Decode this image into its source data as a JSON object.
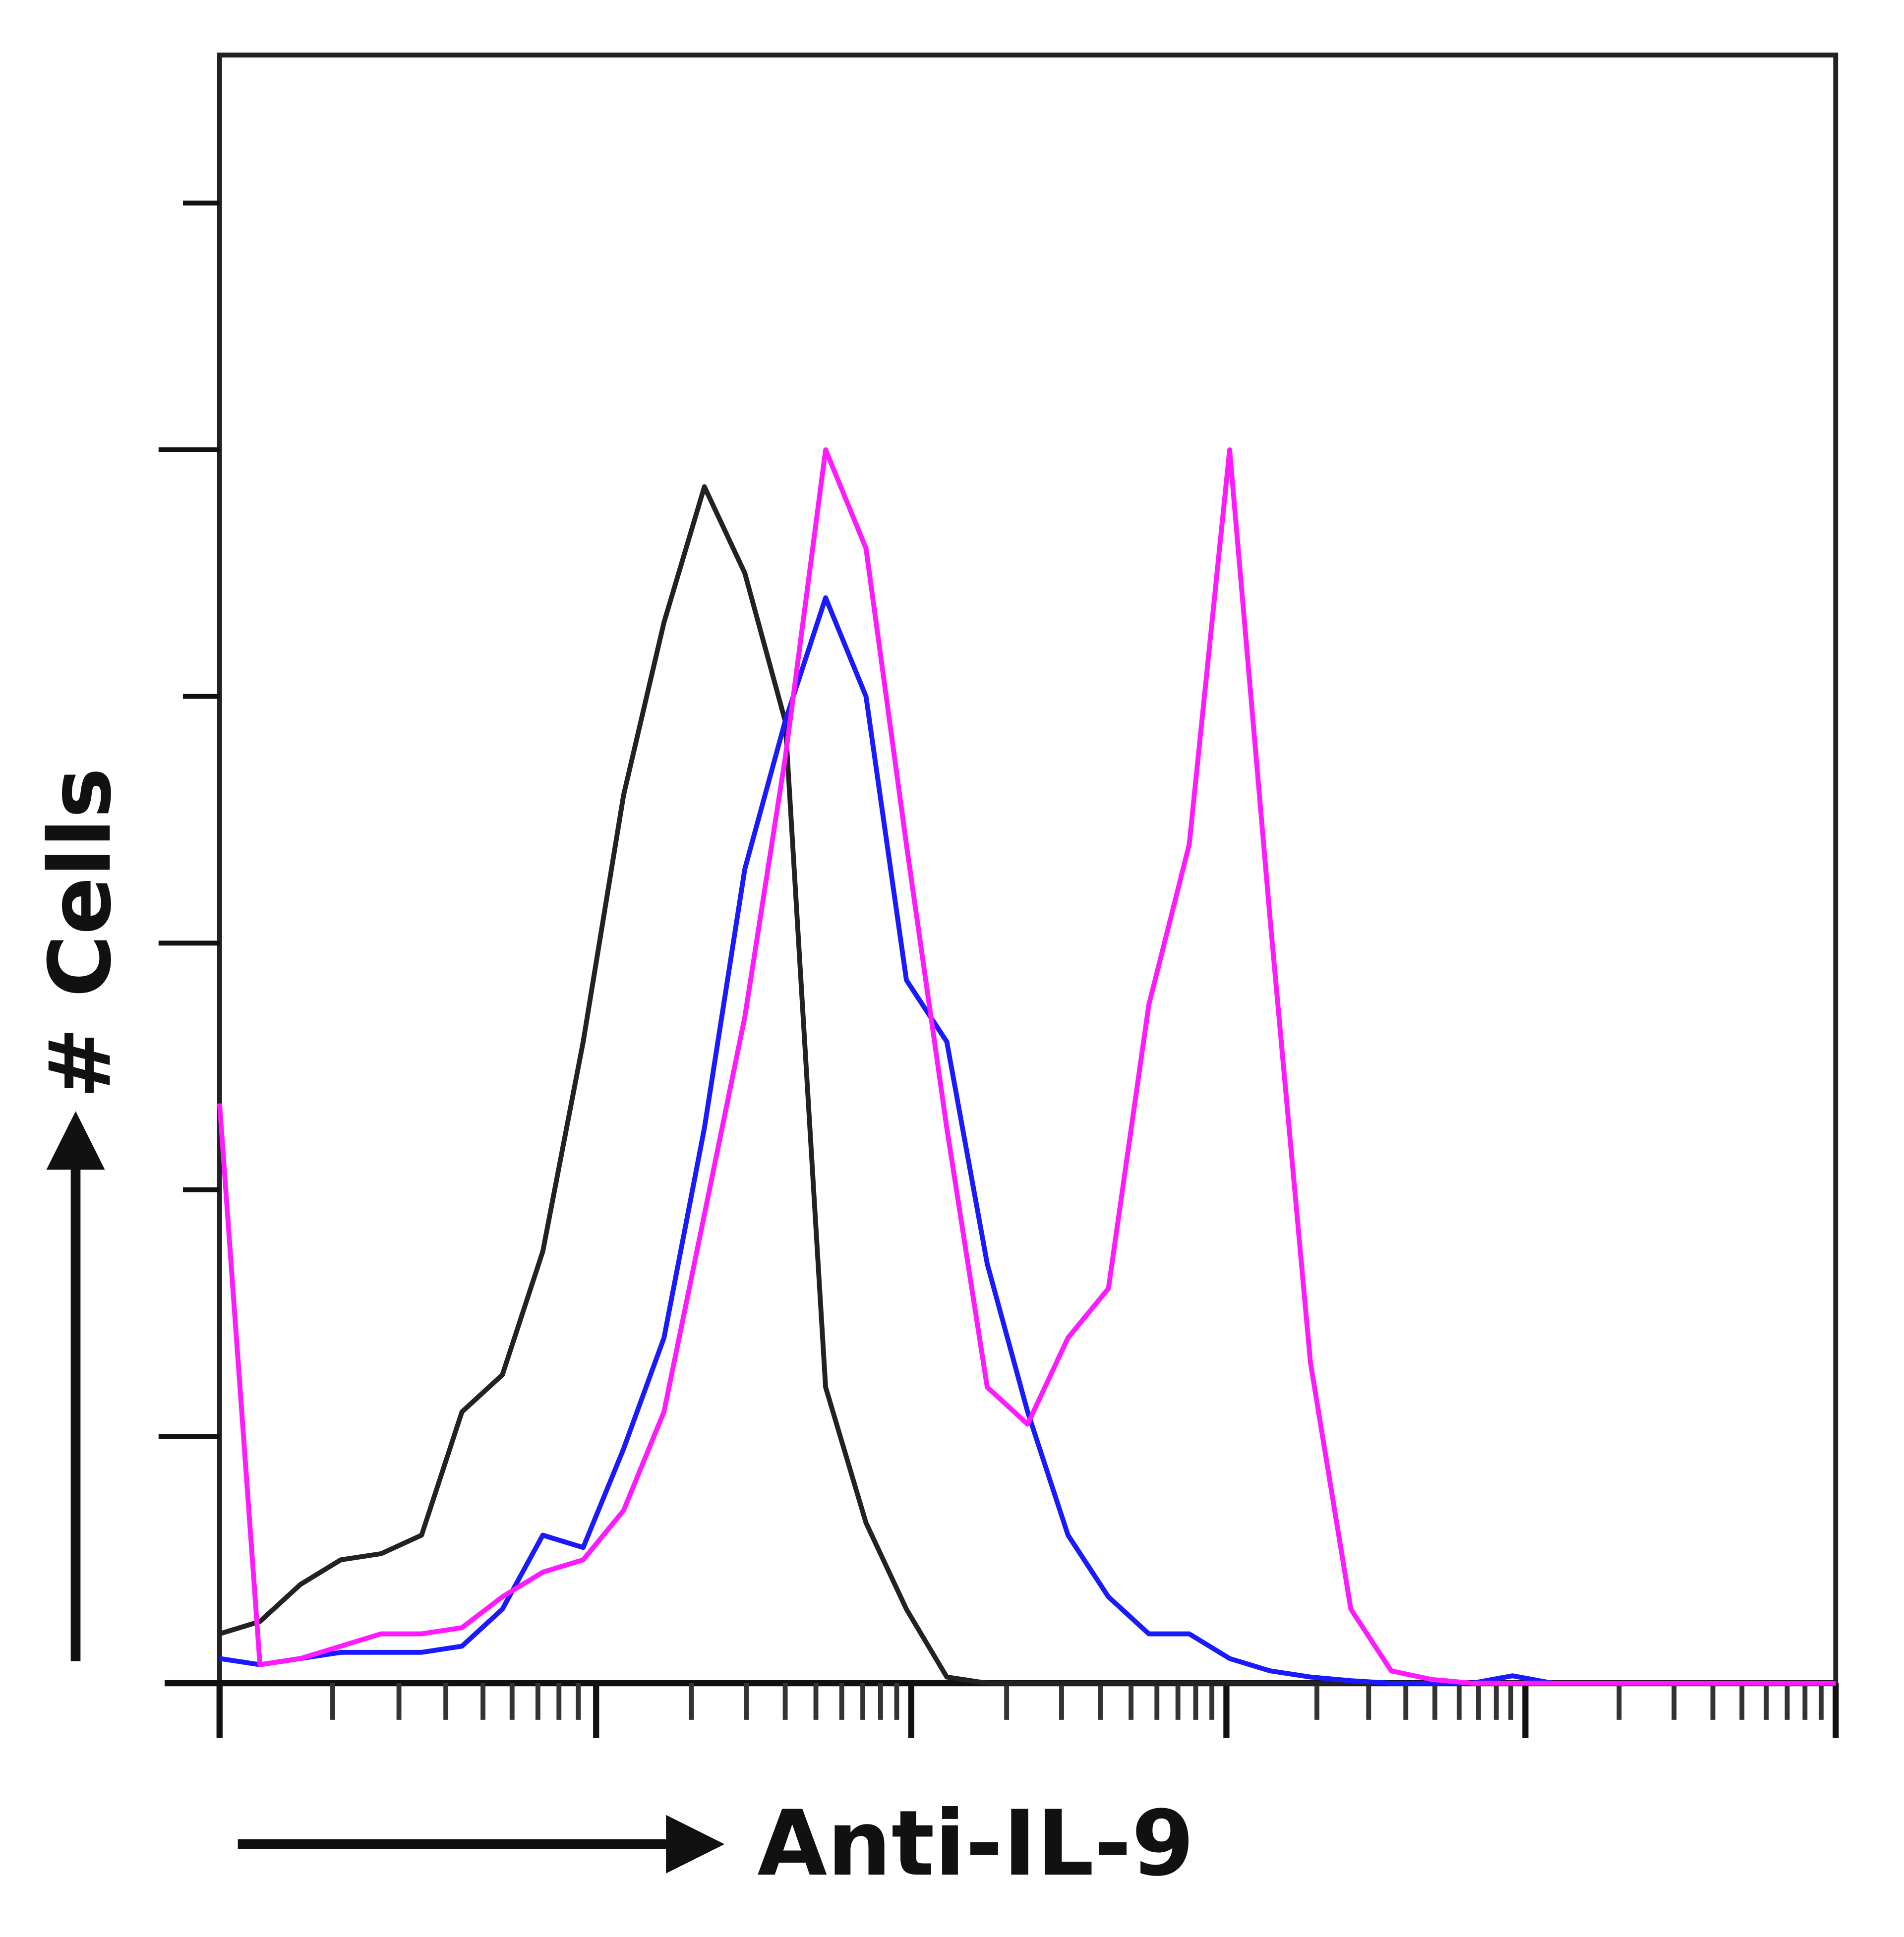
{
  "chart_data": {
    "type": "line",
    "y_label": "# Cells",
    "x_label": "Anti-IL-9",
    "x": [
      0,
      25,
      50,
      75,
      100,
      125,
      150,
      175,
      200,
      225,
      250,
      275,
      300,
      325,
      350,
      375,
      400,
      425,
      450,
      475,
      500,
      525,
      550,
      575,
      600,
      625,
      650,
      675,
      700,
      725,
      750,
      775,
      800,
      825,
      850,
      875,
      900,
      925,
      950,
      975,
      1000
    ],
    "series": [
      {
        "color": "#222222",
        "values": [
          4,
          5,
          8,
          10,
          10.5,
          12,
          22,
          25,
          35,
          52,
          72,
          86,
          97,
          90,
          78,
          24,
          13,
          6,
          0.5,
          0,
          0,
          0,
          0,
          0,
          0,
          0,
          0,
          0,
          0,
          0,
          0,
          0,
          0,
          0,
          0,
          0,
          0,
          0,
          0,
          0,
          0
        ]
      },
      {
        "color": "#1a1aff",
        "values": [
          2,
          1.5,
          2,
          2.5,
          2.5,
          2.5,
          3,
          6,
          12,
          11,
          19,
          28,
          45,
          66,
          78,
          88,
          80,
          57,
          52,
          34,
          22,
          12,
          7,
          4,
          4,
          2,
          1,
          0.5,
          0.2,
          0,
          0,
          0,
          0.6,
          0,
          0,
          0,
          0,
          0,
          0,
          0,
          0
        ]
      },
      {
        "color": "#ff1aff",
        "values": [
          47,
          1.5,
          2,
          3,
          4,
          4,
          4.5,
          7,
          9,
          10,
          14,
          22,
          38,
          54,
          75,
          100,
          92,
          68,
          45,
          24,
          21,
          28,
          32,
          55,
          68,
          100,
          62,
          26,
          6,
          1,
          0.3,
          0,
          0,
          0,
          0,
          0,
          0,
          0,
          0,
          0,
          0
        ]
      }
    ],
    "xlim": [
      0,
      1000
    ],
    "ylim": [
      0,
      132
    ],
    "xticks": [
      0,
      70,
      111,
      140,
      163,
      181,
      197,
      210,
      222,
      233,
      292,
      326,
      350,
      369,
      385,
      398,
      409,
      419,
      428,
      487,
      521,
      545,
      564,
      580,
      593,
      604,
      614,
      623,
      679,
      711,
      734,
      752,
      767,
      779,
      790,
      799,
      808,
      866,
      900,
      924,
      942,
      957,
      970,
      981,
      991,
      1000
    ],
    "xmajor": [
      0,
      233,
      428,
      623,
      808,
      1000
    ],
    "yticks": [
      0,
      20,
      40,
      60,
      80,
      100,
      120
    ]
  }
}
